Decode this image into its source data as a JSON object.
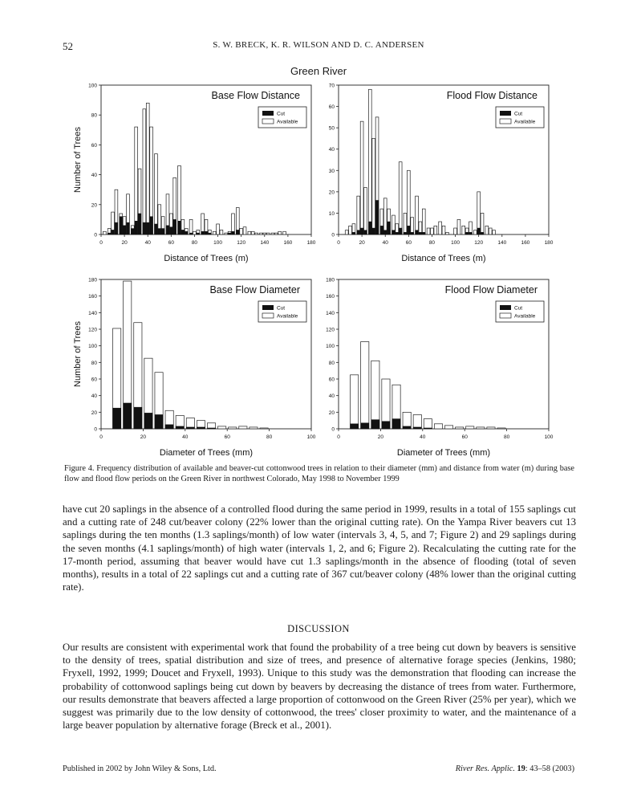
{
  "header": {
    "page_number": "52",
    "running_head": "S. W. BRECK, K. R. WILSON AND D. C. ANDERSEN"
  },
  "figure": {
    "title": "Green River",
    "caption": "Figure 4. Frequency distribution of available and beaver-cut cottonwood trees in relation to their diameter (mm) and distance from water (m) during base flow and flood flow periods on the Green River in northwest Colorado, May 1998 to November 1999",
    "legend": {
      "cut": "Cut",
      "available": "Available"
    },
    "colors": {
      "cut": "#111111",
      "available": "#ffffff",
      "axis": "#222222"
    }
  },
  "chart_data": [
    {
      "type": "bar",
      "title": "Base Flow Distance",
      "xlabel": "Distance of Trees (m)",
      "ylabel": "Number of Trees",
      "xlim": [
        0,
        180
      ],
      "ylim": [
        0,
        100
      ],
      "xticks": [
        0,
        20,
        40,
        60,
        80,
        100,
        120,
        140,
        160,
        180
      ],
      "yticks": [
        0,
        20,
        40,
        60,
        80,
        100
      ],
      "bin_width": 3.33,
      "legend_position": "top-right",
      "x": [
        3,
        7,
        10,
        13,
        17,
        20,
        23,
        27,
        30,
        33,
        37,
        40,
        43,
        47,
        50,
        53,
        57,
        60,
        63,
        67,
        70,
        73,
        77,
        80,
        83,
        87,
        90,
        93,
        97,
        100,
        103,
        107,
        110,
        113,
        117,
        120,
        123,
        127,
        130,
        133,
        137,
        140,
        143,
        147,
        150,
        153,
        157,
        160,
        163,
        167
      ],
      "series": [
        {
          "name": "Available",
          "values": [
            2,
            4,
            15,
            30,
            14,
            12,
            27,
            6,
            72,
            44,
            84,
            88,
            72,
            54,
            20,
            12,
            27,
            14,
            38,
            46,
            10,
            4,
            10,
            2,
            3,
            14,
            10,
            3,
            2,
            7,
            3,
            1,
            2,
            14,
            18,
            4,
            5,
            2,
            2,
            1,
            1,
            1,
            1,
            1,
            1,
            2,
            2,
            0,
            0,
            0
          ]
        },
        {
          "name": "Cut",
          "values": [
            0,
            1,
            3,
            8,
            12,
            6,
            8,
            4,
            9,
            14,
            8,
            8,
            12,
            7,
            4,
            4,
            6,
            5,
            10,
            9,
            3,
            2,
            1,
            0,
            1,
            2,
            2,
            1,
            0,
            0,
            0,
            0,
            1,
            2,
            3,
            0,
            0,
            0,
            0,
            0,
            0,
            0,
            0,
            0,
            0,
            0,
            0,
            0,
            0,
            0
          ]
        }
      ]
    },
    {
      "type": "bar",
      "title": "Flood Flow Distance",
      "xlabel": "Distance of Trees (m)",
      "ylabel": "",
      "xlim": [
        0,
        180
      ],
      "ylim": [
        0,
        70
      ],
      "xticks": [
        0,
        20,
        40,
        60,
        80,
        100,
        120,
        140,
        160,
        180
      ],
      "yticks": [
        0,
        10,
        20,
        30,
        40,
        50,
        60,
        70
      ],
      "bin_width": 3.33,
      "legend_position": "top-right",
      "x": [
        3,
        7,
        10,
        13,
        17,
        20,
        23,
        27,
        30,
        33,
        37,
        40,
        43,
        47,
        50,
        53,
        57,
        60,
        63,
        67,
        70,
        73,
        77,
        80,
        83,
        87,
        90,
        93,
        97,
        100,
        103,
        107,
        110,
        113,
        117,
        120,
        123,
        127,
        130,
        133,
        137,
        140,
        143,
        147,
        150,
        153,
        157,
        160,
        163,
        167
      ],
      "series": [
        {
          "name": "Available",
          "values": [
            0,
            2,
            4,
            5,
            18,
            53,
            22,
            68,
            45,
            55,
            12,
            17,
            12,
            9,
            5,
            34,
            10,
            30,
            8,
            18,
            6,
            12,
            3,
            3,
            4,
            6,
            4,
            1,
            0,
            3,
            7,
            4,
            3,
            6,
            2,
            20,
            10,
            4,
            3,
            2,
            0,
            0,
            0,
            0,
            0,
            0,
            0,
            0,
            0,
            0
          ]
        },
        {
          "name": "Cut",
          "values": [
            0,
            0,
            0,
            1,
            2,
            3,
            2,
            6,
            3,
            16,
            4,
            2,
            6,
            2,
            1,
            3,
            1,
            4,
            1,
            2,
            1,
            1,
            0,
            0,
            0,
            0,
            0,
            0,
            0,
            0,
            0,
            0,
            1,
            1,
            0,
            3,
            1,
            0,
            0,
            0,
            0,
            0,
            0,
            0,
            0,
            0,
            0,
            0,
            0,
            0
          ]
        }
      ]
    },
    {
      "type": "bar",
      "title": "Base Flow Diameter",
      "xlabel": "Diameter of Trees (mm)",
      "ylabel": "Number of Trees",
      "xlim": [
        0,
        100
      ],
      "ylim": [
        0,
        180
      ],
      "xticks": [
        0,
        20,
        40,
        60,
        80,
        100
      ],
      "yticks": [
        0,
        20,
        40,
        60,
        80,
        100,
        120,
        140,
        160,
        180
      ],
      "bin_width": 5,
      "legend_position": "top-right",
      "x": [
        7.5,
        12.5,
        17.5,
        22.5,
        27.5,
        32.5,
        37.5,
        42.5,
        47.5,
        52.5,
        57.5,
        62.5,
        67.5,
        72.5,
        77.5,
        82.5,
        87.5,
        92.5
      ],
      "series": [
        {
          "name": "Available",
          "values": [
            121,
            178,
            128,
            85,
            68,
            22,
            16,
            13,
            10,
            7,
            3,
            2,
            3,
            2,
            1,
            0,
            0,
            0
          ]
        },
        {
          "name": "Cut",
          "values": [
            25,
            31,
            26,
            19,
            17,
            5,
            3,
            2,
            2,
            1,
            0,
            0,
            0,
            0,
            0,
            0,
            0,
            0
          ]
        }
      ]
    },
    {
      "type": "bar",
      "title": "Flood Flow Diameter",
      "xlabel": "Diameter of Trees (mm)",
      "ylabel": "",
      "xlim": [
        0,
        100
      ],
      "ylim": [
        0,
        180
      ],
      "xticks": [
        0,
        20,
        40,
        60,
        80,
        100
      ],
      "yticks": [
        0,
        20,
        40,
        60,
        80,
        100,
        120,
        140,
        160,
        180
      ],
      "bin_width": 5,
      "legend_position": "top-right",
      "x": [
        7.5,
        12.5,
        17.5,
        22.5,
        27.5,
        32.5,
        37.5,
        42.5,
        47.5,
        52.5,
        57.5,
        62.5,
        67.5,
        72.5,
        77.5,
        82.5,
        87.5,
        92.5
      ],
      "series": [
        {
          "name": "Available",
          "values": [
            65,
            105,
            82,
            60,
            53,
            20,
            17,
            12,
            6,
            4,
            2,
            3,
            2,
            2,
            1,
            0,
            0,
            0
          ]
        },
        {
          "name": "Cut",
          "values": [
            6,
            7,
            11,
            9,
            12,
            3,
            2,
            1,
            0,
            0,
            0,
            0,
            0,
            0,
            0,
            0,
            0,
            0
          ]
        }
      ]
    }
  ],
  "body": {
    "paragraph_1": "have cut 20 saplings in the absence of a controlled flood during the same period in 1999, results in a total of 155 saplings cut and a cutting rate of 248 cut/beaver colony (22% lower than the original cutting rate). On the Yampa River beavers cut 13 saplings during the ten months (1.3 saplings/month) of low water (intervals 3, 4, 5, and 7; Figure 2) and 29 saplings during the seven months (4.1 saplings/month) of high water (intervals 1, 2, and 6; Figure 2). Recalculating the cutting rate for the 17-month period, assuming that beaver would have cut 1.3 saplings/month in the absence of flooding (total of seven months), results in a total of 22 saplings cut and a cutting rate of 367 cut/beaver colony (48% lower than the original cutting rate).",
    "section_heading": "DISCUSSION",
    "paragraph_2": "Our results are consistent with experimental work that found the probability of a tree being cut down by beavers is sensitive to the density of trees, spatial distribution and size of trees, and presence of alternative forage species (Jenkins, 1980; Fryxell, 1992, 1999; Doucet and Fryxell, 1993). Unique to this study was the demonstration that flooding can increase the probability of cottonwood saplings being cut down by beavers by decreasing the distance of trees from water. Furthermore, our results demonstrate that beavers affected a large proportion of cottonwood on the Green River (25% per year), which we suggest was primarily due to the low density of cottonwood, the trees' closer proximity to water, and the maintenance of a large beaver population by alternative forage (Breck et al., 2001)."
  },
  "footer": {
    "publisher": "Published in 2002 by John Wiley & Sons, Ltd.",
    "citation": "River Res. Applic. 19: 43–58 (2003)"
  }
}
